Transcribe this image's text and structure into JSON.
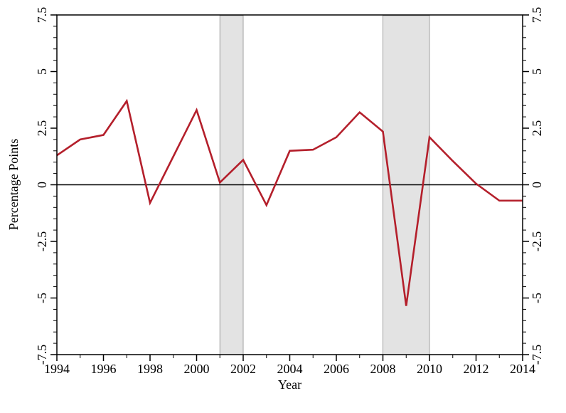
{
  "figure": {
    "background": "#ffffff"
  },
  "chart_data": {
    "type": "line",
    "title": "",
    "xlabel": "Year",
    "ylabel": "Percentage Points",
    "x": [
      1994,
      1995,
      1996,
      1997,
      1998,
      1999,
      2000,
      2001,
      2002,
      2003,
      2004,
      2005,
      2006,
      2007,
      2008,
      2009,
      2010,
      2011,
      2012,
      2013,
      2014
    ],
    "series": [
      {
        "name": "Percentage Points",
        "color": "#b41f2b",
        "values": [
          1.3,
          2.0,
          2.2,
          3.7,
          -0.8,
          1.25,
          3.3,
          0.1,
          1.1,
          -0.9,
          1.5,
          1.55,
          2.1,
          3.2,
          2.35,
          -5.35,
          2.1,
          1.05,
          0.05,
          -0.7,
          -0.7
        ]
      }
    ],
    "xlim": [
      1994,
      2014
    ],
    "ylim": [
      -7.5,
      7.5
    ],
    "x_major_ticks": [
      1994,
      1996,
      1998,
      2000,
      2002,
      2004,
      2006,
      2008,
      2010,
      2012,
      2014
    ],
    "x_minor_ticks": [
      1995,
      1997,
      1999,
      2001,
      2003,
      2005,
      2007,
      2009,
      2011,
      2013
    ],
    "y_major_ticks": [
      7.5,
      5,
      2.5,
      0,
      -2.5,
      -5,
      -7.5
    ],
    "y_major_tick_labels": [
      "7.5",
      "5",
      "2.5",
      "0",
      "-2.5",
      "-5",
      "-7.5"
    ],
    "y_minor_step": 0.5,
    "zero_line": true,
    "grid": false,
    "legend_position": "none",
    "shaded_bands": [
      {
        "from": 2001,
        "to": 2002
      },
      {
        "from": 2008,
        "to": 2010
      }
    ],
    "colors": {
      "line": "#b41f2b",
      "band_fill": "#e3e3e3",
      "band_border": "#a0a0a0",
      "axis": "#000000"
    }
  }
}
